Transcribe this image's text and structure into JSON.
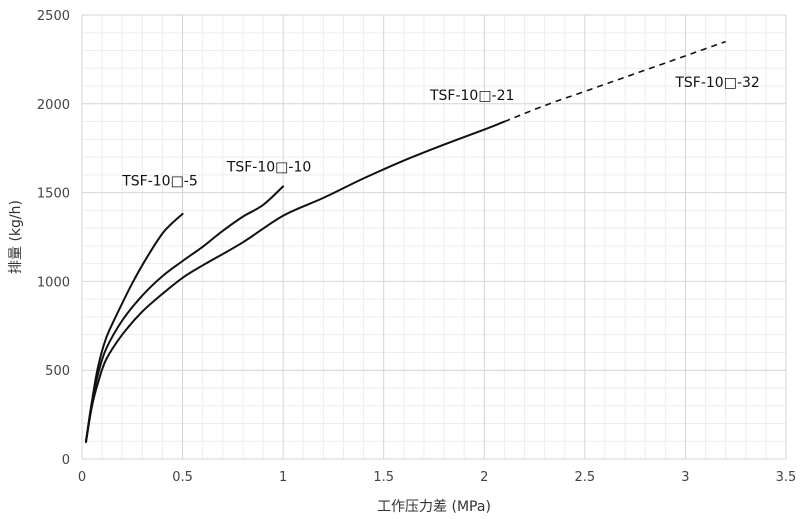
{
  "chart_data": {
    "type": "line",
    "xlabel": "工作压力差 (MPa)",
    "ylabel": "排量 (kg/h)",
    "xlim": [
      0,
      3.5
    ],
    "ylim": [
      0,
      2500
    ],
    "x_ticks": [
      "0",
      "0.5",
      "1",
      "1.5",
      "2",
      "2.5",
      "3",
      "3.5"
    ],
    "y_ticks": [
      "0",
      "500",
      "1000",
      "1500",
      "2000",
      "2500"
    ],
    "grid": true,
    "legend": "none",
    "series": [
      {
        "name": "TSF-10□-5",
        "line_style": "solid",
        "points": [
          [
            0.02,
            100
          ],
          [
            0.05,
            330
          ],
          [
            0.08,
            520
          ],
          [
            0.12,
            680
          ],
          [
            0.18,
            830
          ],
          [
            0.25,
            990
          ],
          [
            0.32,
            1130
          ],
          [
            0.4,
            1270
          ],
          [
            0.45,
            1330
          ],
          [
            0.5,
            1380
          ]
        ]
      },
      {
        "name": "TSF-10□-10",
        "line_style": "solid",
        "points": [
          [
            0.02,
            100
          ],
          [
            0.05,
            320
          ],
          [
            0.08,
            480
          ],
          [
            0.12,
            620
          ],
          [
            0.2,
            780
          ],
          [
            0.3,
            920
          ],
          [
            0.4,
            1030
          ],
          [
            0.5,
            1115
          ],
          [
            0.6,
            1195
          ],
          [
            0.7,
            1285
          ],
          [
            0.8,
            1365
          ],
          [
            0.9,
            1430
          ],
          [
            1.0,
            1535
          ]
        ]
      },
      {
        "name": "TSF-10□-21",
        "line_style": "solid",
        "points": [
          [
            0.02,
            95
          ],
          [
            0.05,
            300
          ],
          [
            0.08,
            430
          ],
          [
            0.12,
            560
          ],
          [
            0.2,
            700
          ],
          [
            0.3,
            830
          ],
          [
            0.4,
            930
          ],
          [
            0.5,
            1020
          ],
          [
            0.6,
            1090
          ],
          [
            0.8,
            1220
          ],
          [
            1.0,
            1370
          ],
          [
            1.2,
            1470
          ],
          [
            1.4,
            1580
          ],
          [
            1.6,
            1680
          ],
          [
            1.8,
            1770
          ],
          [
            2.0,
            1855
          ],
          [
            2.1,
            1900
          ]
        ]
      },
      {
        "name": "TSF-10□-32",
        "line_style": "dashed",
        "points": [
          [
            2.1,
            1900
          ],
          [
            2.3,
            1990
          ],
          [
            2.5,
            2070
          ],
          [
            2.7,
            2150
          ],
          [
            2.9,
            2230
          ],
          [
            3.1,
            2310
          ],
          [
            3.2,
            2350
          ]
        ]
      }
    ],
    "annotations": [
      {
        "text": "TSF-10□-5",
        "x": 0.2,
        "y": 1540
      },
      {
        "text": "TSF-10□-10",
        "x": 0.72,
        "y": 1620
      },
      {
        "text": "TSF-10□-21",
        "x": 1.73,
        "y": 2020
      },
      {
        "text": "TSF-10□-32",
        "x": 2.95,
        "y": 2095
      }
    ]
  }
}
